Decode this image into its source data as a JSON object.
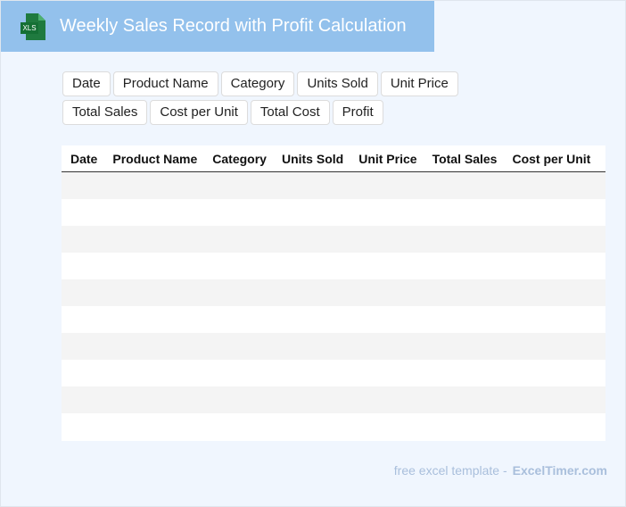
{
  "header": {
    "icon": "XLS",
    "title": "Weekly Sales Record with Profit Calculation"
  },
  "columns": [
    "Date",
    "Product Name",
    "Category",
    "Units Sold",
    "Unit Price",
    "Total Sales",
    "Cost per Unit",
    "Total Cost",
    "Profit"
  ],
  "footer": {
    "text": "free excel template -",
    "brand": "ExcelTimer.com"
  }
}
